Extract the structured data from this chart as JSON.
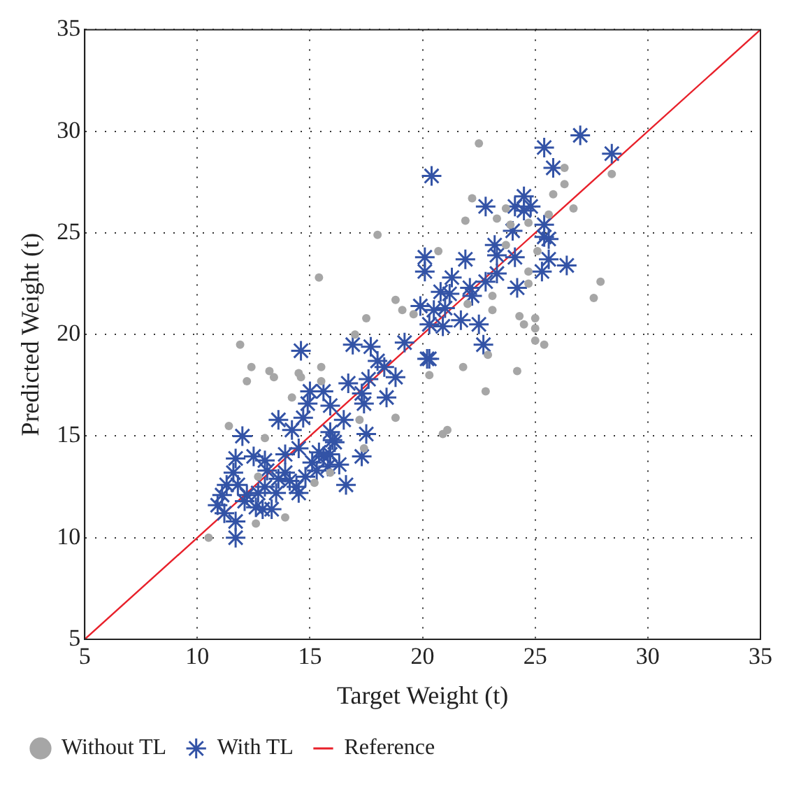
{
  "chart_data": {
    "type": "scatter",
    "xlabel": "Target Weight (t)",
    "ylabel": "Predicted Weight (t)",
    "xlim": [
      5,
      35
    ],
    "ylim": [
      5,
      35
    ],
    "xticks": [
      5,
      10,
      15,
      20,
      25,
      30,
      35
    ],
    "yticks": [
      5,
      10,
      15,
      20,
      25,
      30,
      35
    ],
    "grid": true,
    "legend": "bottom",
    "series": [
      {
        "name": "Without TL",
        "marker": "circle",
        "color": "#a6a6a6",
        "x": [
          22.5,
          28.4,
          26.3,
          26.3,
          25.8,
          26.7,
          25.6,
          22.2,
          21.9,
          23.3,
          23.7,
          18.0,
          20.7,
          15.4,
          24.7,
          24.7,
          27.9,
          27.6,
          23.1,
          23.1,
          25.0,
          24.3,
          24.5,
          25.0,
          25.0,
          25.4,
          22.9,
          24.2,
          21.8,
          22.8,
          20.9,
          21.1,
          20.3,
          18.8,
          18.8,
          19.1,
          17.5,
          17.0,
          11.9,
          12.2,
          12.4,
          13.2,
          13.4,
          14.5,
          14.6,
          15.5,
          15.5,
          14.2,
          11.4,
          13.0,
          17.2,
          17.4,
          13.9,
          10.5,
          12.6,
          12.7,
          15.2,
          15.9,
          22.0,
          19.6,
          23.7,
          23.9,
          24.7,
          25.1
        ],
        "values": [
          29.4,
          27.9,
          28.2,
          27.4,
          26.9,
          26.2,
          25.9,
          26.7,
          25.6,
          25.7,
          26.2,
          24.9,
          24.1,
          22.8,
          23.1,
          22.5,
          22.6,
          21.8,
          21.9,
          21.2,
          20.8,
          20.9,
          20.5,
          20.3,
          19.7,
          19.5,
          19.0,
          18.2,
          18.4,
          17.2,
          15.1,
          15.3,
          18.0,
          15.9,
          21.7,
          21.2,
          20.8,
          20.0,
          19.5,
          17.7,
          18.4,
          18.2,
          17.9,
          18.1,
          17.9,
          18.4,
          17.7,
          16.9,
          15.5,
          14.9,
          15.8,
          14.4,
          11.0,
          10.0,
          10.7,
          13.0,
          12.7,
          13.2,
          21.5,
          21.0,
          24.4,
          25.4,
          25.5,
          24.1
        ]
      },
      {
        "name": "With TL",
        "marker": "cross",
        "color": "#3353a6",
        "x": [
          27.0,
          25.4,
          25.8,
          28.4,
          20.4,
          22.8,
          24.1,
          24.5,
          24.8,
          24.5,
          24.0,
          25.4,
          25.4,
          25.6,
          23.2,
          23.3,
          24.1,
          25.6,
          26.4,
          25.3,
          20.1,
          20.1,
          21.9,
          21.3,
          23.3,
          22.8,
          24.2,
          20.8,
          21.2,
          22.1,
          22.2,
          19.9,
          20.5,
          21.0,
          20.3,
          20.9,
          21.7,
          22.5,
          22.7,
          19.2,
          16.9,
          17.7,
          14.6,
          18.0,
          18.3,
          18.8,
          20.2,
          20.3,
          16.7,
          17.6,
          17.3,
          18.4,
          15.0,
          15.6,
          15.9,
          14.9,
          14.7,
          16.5,
          17.4,
          13.6,
          14.2,
          12.0,
          17.5,
          17.3,
          16.6,
          14.5,
          13.9,
          12.5,
          11.7,
          13.0,
          11.3,
          11.8,
          10.9,
          11.2,
          11.7,
          11.7,
          12.1,
          12.6,
          12.9,
          13.3,
          13.0,
          13.6,
          14.1,
          14.5,
          14.8,
          15.1,
          15.6,
          15.9,
          16.1,
          16.3,
          15.8,
          15.3,
          13.9,
          13.1,
          12.2,
          11.6,
          11.1,
          12.7,
          13.5,
          14.4,
          16.0,
          15.9,
          15.4
        ],
        "values": [
          29.8,
          29.2,
          28.2,
          28.9,
          27.8,
          26.3,
          26.3,
          26.8,
          26.3,
          26.1,
          25.1,
          25.4,
          24.8,
          24.7,
          24.4,
          23.9,
          23.8,
          23.7,
          23.4,
          23.1,
          23.8,
          23.1,
          23.7,
          22.8,
          23.0,
          22.6,
          22.3,
          22.1,
          22.0,
          22.3,
          21.9,
          21.4,
          21.2,
          21.3,
          20.5,
          20.4,
          20.7,
          20.5,
          19.5,
          19.6,
          19.5,
          19.4,
          19.2,
          18.7,
          18.4,
          17.9,
          18.8,
          18.8,
          17.6,
          17.8,
          17.1,
          16.9,
          17.2,
          17.2,
          16.5,
          16.6,
          15.9,
          15.8,
          16.6,
          15.8,
          15.3,
          15.0,
          15.1,
          14.0,
          12.6,
          14.4,
          14.1,
          14.0,
          13.9,
          13.8,
          12.6,
          12.6,
          11.6,
          11.2,
          10.8,
          10.0,
          11.8,
          11.5,
          11.4,
          11.4,
          12.5,
          12.9,
          12.8,
          12.2,
          13.0,
          13.7,
          14.0,
          14.1,
          14.7,
          13.6,
          13.5,
          13.3,
          13.2,
          13.3,
          12.1,
          13.2,
          12.1,
          12.2,
          12.2,
          12.5,
          14.8,
          15.2,
          14.2
        ]
      },
      {
        "name": "Reference",
        "type": "line",
        "marker": "none",
        "line_style": "solid",
        "color": "#e8202a",
        "x": [
          5,
          35
        ],
        "values": [
          5,
          35
        ]
      }
    ]
  }
}
